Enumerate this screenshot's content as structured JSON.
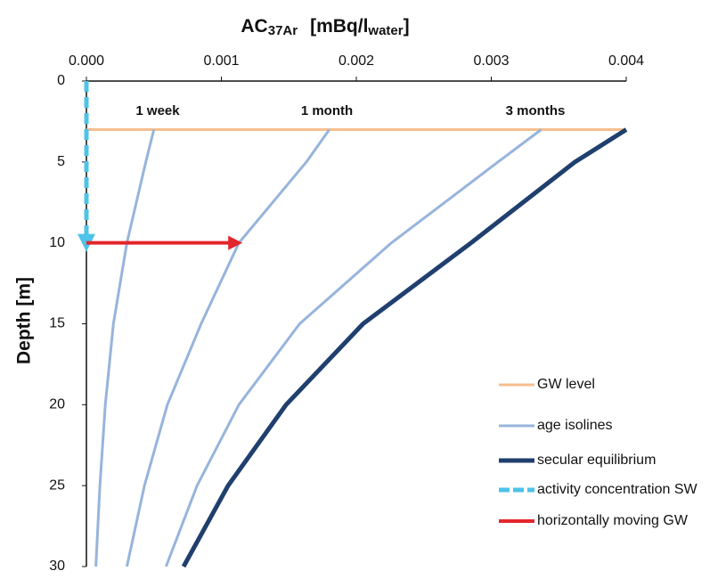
{
  "chart_data": {
    "type": "line",
    "xlabel": {
      "main": "AC",
      "sub": "37Ar",
      "unit": "[mBq/l",
      "unit_sub": "water",
      "close": "]"
    },
    "ylabel": "Depth [m]",
    "xlim": [
      0,
      0.004
    ],
    "xticks": [
      {
        "value": 0,
        "label": "0.000"
      },
      {
        "value": 0.001,
        "label": "0.001"
      },
      {
        "value": 0.002,
        "label": "0.002"
      },
      {
        "value": 0.003,
        "label": "0.003"
      },
      {
        "value": 0.004,
        "label": "0.004"
      }
    ],
    "ylim": [
      0,
      30
    ],
    "yticks": [
      0,
      5,
      10,
      15,
      20,
      25,
      30
    ],
    "y_inverted": true,
    "x_axis_position": "top",
    "series": [
      {
        "name": "GW level",
        "color": "#f6bf8f",
        "width": 3,
        "x": [
          0,
          0.004
        ],
        "values": [
          3,
          3
        ]
      },
      {
        "name": "age isolines",
        "color": "#97b4dc",
        "width": 3,
        "lines": [
          {
            "label": "1 week",
            "x": [
              0.0005,
              0.00044,
              0.0003,
              0.0002,
              0.00014,
              0.0001,
              7e-05
            ],
            "values": [
              3,
              5,
              10,
              15,
              20,
              25,
              30
            ]
          },
          {
            "label": "1 month",
            "x": [
              0.0018,
              0.00163,
              0.00113,
              0.00085,
              0.0006,
              0.00043,
              0.0003
            ],
            "values": [
              3,
              5,
              10,
              15,
              20,
              25,
              30
            ]
          },
          {
            "label": "3 months",
            "x": [
              0.00337,
              0.00305,
              0.00226,
              0.00158,
              0.00113,
              0.00082,
              0.00059
            ],
            "values": [
              3,
              5,
              10,
              15,
              20,
              25,
              30
            ]
          }
        ]
      },
      {
        "name": "secular equilibrium",
        "color": "#1f3f6e",
        "width": 5,
        "x": [
          0.004,
          0.00362,
          0.00285,
          0.00205,
          0.00148,
          0.00105,
          0.00072
        ],
        "values": [
          3,
          5,
          10,
          15,
          20,
          25,
          30
        ]
      },
      {
        "name": "activity concentration SW",
        "color": "#4dc3e8",
        "width": 5,
        "dashed": true,
        "arrow": true,
        "x": [
          0,
          0
        ],
        "values": [
          0,
          10
        ]
      },
      {
        "name": "horizontally moving GW",
        "color": "#e3262b",
        "width": 4,
        "arrow": true,
        "x": [
          0,
          0.00113
        ],
        "values": [
          10,
          10
        ]
      }
    ]
  }
}
